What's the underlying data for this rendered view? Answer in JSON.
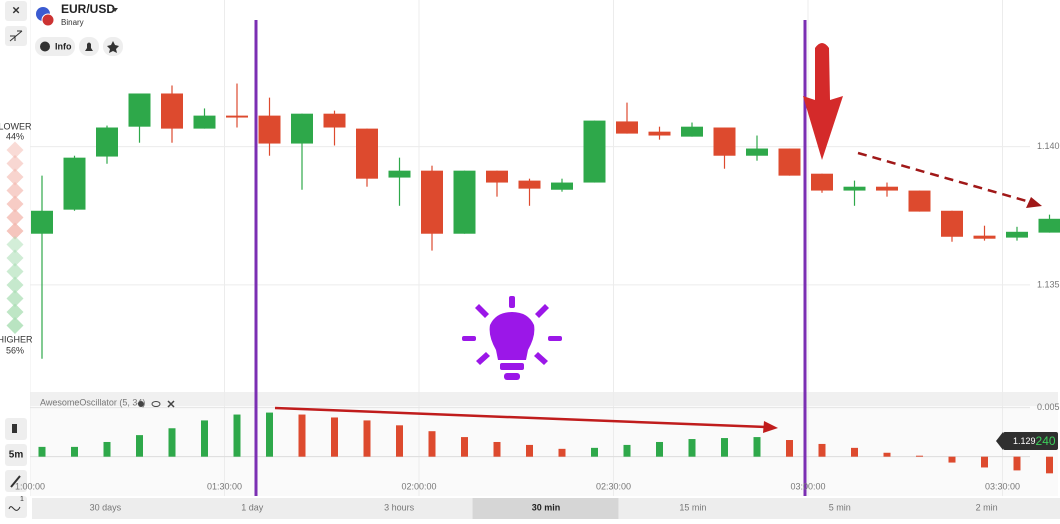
{
  "header": {
    "symbol": "EUR/USD",
    "subtitle": "Binary",
    "info": "Info"
  },
  "sidebar": {
    "lower_label": "LOWER",
    "lower_pct": "44%",
    "higher_label": "HIGHER",
    "higher_pct": "56%",
    "timeframe": "5m",
    "badge": "1"
  },
  "chart_data": [
    {
      "type": "candlestick",
      "up_color": "#2ea84a",
      "down_color": "#dd4a2e",
      "open": [
        1.13685,
        1.13772,
        1.13964,
        1.14072,
        1.14192,
        1.14065,
        1.14112,
        1.14112,
        1.14011,
        1.14119,
        1.14065,
        1.13888,
        1.13913,
        1.13685,
        1.13913,
        1.13877,
        1.13844,
        1.1387,
        1.14091,
        1.14054,
        1.14036,
        1.14069,
        1.13967,
        1.13993,
        1.13902,
        1.13841,
        1.13855,
        1.13841,
        1.13768,
        1.13678,
        1.13671,
        1.13689
      ],
      "high": [
        1.13895,
        1.13967,
        1.14076,
        1.14192,
        1.14221,
        1.14138,
        1.14228,
        1.14177,
        1.14119,
        1.1413,
        1.14065,
        1.1396,
        1.13931,
        1.13913,
        1.13913,
        1.13884,
        1.13884,
        1.14094,
        1.14159,
        1.14072,
        1.14087,
        1.14069,
        1.1404,
        1.13993,
        1.13902,
        1.13877,
        1.1387,
        1.13841,
        1.13768,
        1.13714,
        1.1371,
        1.13754
      ],
      "low": [
        1.13233,
        1.13768,
        1.13938,
        1.14014,
        1.14014,
        1.14065,
        1.14069,
        1.13967,
        1.13844,
        1.14004,
        1.13855,
        1.13786,
        1.13624,
        1.13685,
        1.13819,
        1.13786,
        1.13837,
        1.1387,
        1.14047,
        1.14025,
        1.14036,
        1.1392,
        1.13949,
        1.13895,
        1.13833,
        1.13786,
        1.13819,
        1.13765,
        1.13656,
        1.1366,
        1.1366,
        1.13689
      ],
      "close": [
        1.13768,
        1.1396,
        1.14069,
        1.14192,
        1.14065,
        1.14112,
        1.14105,
        1.14011,
        1.14119,
        1.14069,
        1.13884,
        1.13913,
        1.13685,
        1.13913,
        1.1387,
        1.13848,
        1.1387,
        1.14094,
        1.14047,
        1.1404,
        1.14072,
        1.13967,
        1.13993,
        1.13895,
        1.13841,
        1.13855,
        1.13841,
        1.13765,
        1.13674,
        1.13667,
        1.13692,
        1.13739
      ],
      "ylim": [
        1.1312,
        1.1453
      ],
      "yticks": [
        {
          "value": 1.14,
          "label": "1.140"
        },
        {
          "value": 1.135,
          "label": "1.135"
        }
      ]
    },
    {
      "type": "bar",
      "title": "AwesomeOscillator (5, 34)",
      "up_color": "#2ea84a",
      "down_color": "#dd4a2e",
      "values": [
        0.001,
        0.001,
        0.0015,
        0.0022,
        0.0029,
        0.0037,
        0.0043,
        0.0045,
        0.0043,
        0.004,
        0.0037,
        0.0032,
        0.0026,
        0.002,
        0.0015,
        0.0012,
        0.0008,
        0.0009,
        0.0012,
        0.0015,
        0.0018,
        0.0019,
        0.002,
        0.0017,
        0.0013,
        0.0009,
        0.0004,
        0.0001,
        -0.0006,
        -0.0011,
        -0.0014,
        -0.0017
      ],
      "ylim": [
        -0.0034,
        0.0066
      ],
      "yticks": [
        {
          "value": 0.005,
          "label": "0.005"
        }
      ]
    }
  ],
  "time_axis": [
    "1:00:00",
    "01:30:00",
    "02:00:00",
    "02:30:00",
    "03:00:00",
    "03:30:00"
  ],
  "price_tag": {
    "main": "1.129",
    "tail": "240"
  },
  "periods": [
    "30 days",
    "1 day",
    "3 hours",
    "30 min",
    "15 min",
    "5 min",
    "2 min"
  ],
  "selected_period": 3
}
